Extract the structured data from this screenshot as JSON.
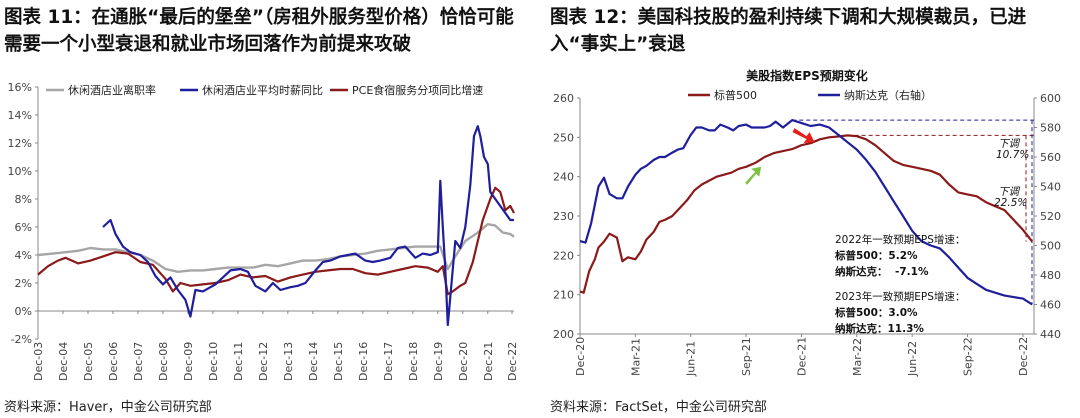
{
  "fig1": {
    "title": "图表 11：在通胀“最后的堡垒”（房租外服务型价格）恰恰可能需要一个小型衰退和就业市场回落作为前提来攻破",
    "source": "资料来源：Haver，中金公司研究部"
  },
  "fig2": {
    "title": "图表 12：美国科技股的盈利持续下调和大规模裁员，已进入“事实上”衰退",
    "source": "资料来源：FactSet，中金公司研究部"
  },
  "chart_data": [
    {
      "type": "line",
      "title": "",
      "categories": [
        "Dec-03",
        "Dec-04",
        "Dec-05",
        "Dec-06",
        "Dec-07",
        "Dec-08",
        "Dec-09",
        "Dec-10",
        "Dec-11",
        "Dec-12",
        "Dec-13",
        "Dec-14",
        "Dec-15",
        "Dec-16",
        "Dec-17",
        "Dec-18",
        "Dec-19",
        "Dec-20",
        "Dec-21",
        "Dec-22"
      ],
      "ylim": [
        -2,
        16
      ],
      "yticks": [
        "-2%",
        "0%",
        "2%",
        "4%",
        "6%",
        "8%",
        "10%",
        "12%",
        "14%",
        "16%"
      ],
      "legend_position": "top",
      "grid": false,
      "colors": {
        "quits": "#a6a6a6",
        "wages": "#1f1f9c",
        "pce": "#8b1a1a"
      },
      "series": [
        {
          "key": "quits",
          "name": "休闲酒店业离职率",
          "x": [
            2003.9,
            2004.5,
            2005.0,
            2005.5,
            2006.0,
            2006.5,
            2007.0,
            2007.5,
            2008.0,
            2008.5,
            2009.0,
            2009.5,
            2010.0,
            2010.5,
            2011.0,
            2011.5,
            2012.0,
            2012.5,
            2013.0,
            2013.5,
            2014.0,
            2014.5,
            2015.0,
            2015.5,
            2016.0,
            2016.5,
            2017.0,
            2017.5,
            2018.0,
            2018.5,
            2019.0,
            2019.5,
            2020.0,
            2020.3,
            2020.6,
            2021.0,
            2021.5,
            2021.9,
            2022.2,
            2022.5,
            2022.8,
            2022.95
          ],
          "values": [
            4.0,
            4.1,
            4.2,
            4.3,
            4.5,
            4.4,
            4.4,
            4.2,
            4.0,
            3.6,
            3.0,
            2.8,
            2.9,
            2.9,
            3.0,
            3.1,
            3.1,
            3.1,
            3.3,
            3.2,
            3.4,
            3.6,
            3.6,
            3.7,
            3.9,
            4.0,
            4.1,
            4.3,
            4.4,
            4.5,
            4.6,
            4.6,
            4.6,
            3.0,
            3.9,
            5.0,
            5.6,
            6.2,
            6.1,
            5.6,
            5.5,
            5.3
          ]
        },
        {
          "key": "wages",
          "name": "休闲酒店业平均时薪同比",
          "x": [
            2006.5,
            2006.8,
            2007.0,
            2007.3,
            2007.6,
            2008.0,
            2008.3,
            2008.6,
            2008.9,
            2009.2,
            2009.5,
            2009.8,
            2010.0,
            2010.2,
            2010.5,
            2010.8,
            2011.0,
            2011.3,
            2011.6,
            2012.0,
            2012.3,
            2012.6,
            2013.0,
            2013.3,
            2013.6,
            2014.0,
            2014.3,
            2014.6,
            2015.0,
            2015.3,
            2015.6,
            2016.0,
            2016.3,
            2016.6,
            2017.0,
            2017.3,
            2017.6,
            2018.0,
            2018.3,
            2018.6,
            2019.0,
            2019.3,
            2019.6,
            2019.9,
            2020.0,
            2020.1,
            2020.2,
            2020.3,
            2020.4,
            2020.5,
            2020.6,
            2020.8,
            2021.0,
            2021.2,
            2021.35,
            2021.5,
            2021.6,
            2021.75,
            2021.9,
            2022.0,
            2022.2,
            2022.4,
            2022.6,
            2022.8,
            2022.95
          ],
          "values": [
            6.0,
            6.5,
            5.5,
            4.6,
            4.2,
            4.0,
            3.5,
            2.5,
            1.9,
            2.4,
            1.5,
            0.8,
            -0.4,
            1.5,
            1.4,
            1.7,
            1.9,
            2.4,
            2.9,
            3.0,
            2.8,
            1.8,
            1.4,
            2.0,
            1.5,
            1.7,
            1.8,
            2.0,
            2.9,
            3.5,
            3.6,
            3.9,
            4.0,
            4.1,
            3.6,
            3.5,
            3.6,
            3.8,
            4.5,
            4.6,
            3.8,
            4.1,
            4.0,
            4.2,
            9.3,
            6.0,
            3.0,
            -1.0,
            1.0,
            3.0,
            5.0,
            4.5,
            6.0,
            9.0,
            12.5,
            13.2,
            12.5,
            11.0,
            10.5,
            8.5,
            8.0,
            7.5,
            7.0,
            6.5,
            6.5
          ]
        },
        {
          "key": "pce",
          "name": "PCE食宿服务分项同比增速",
          "x": [
            2003.9,
            2004.3,
            2004.7,
            2005.0,
            2005.5,
            2006.0,
            2006.5,
            2007.0,
            2007.5,
            2008.0,
            2008.5,
            2009.0,
            2009.3,
            2009.6,
            2010.0,
            2010.5,
            2011.0,
            2011.5,
            2012.0,
            2012.5,
            2013.0,
            2013.5,
            2014.0,
            2014.5,
            2015.0,
            2015.5,
            2016.0,
            2016.5,
            2017.0,
            2017.5,
            2018.0,
            2018.5,
            2019.0,
            2019.5,
            2019.9,
            2020.1,
            2020.3,
            2020.5,
            2020.8,
            2021.0,
            2021.3,
            2021.5,
            2021.7,
            2022.0,
            2022.2,
            2022.4,
            2022.6,
            2022.8,
            2022.95
          ],
          "values": [
            2.6,
            3.2,
            3.6,
            3.8,
            3.4,
            3.6,
            3.9,
            4.2,
            4.1,
            3.5,
            3.3,
            2.3,
            1.4,
            2.0,
            1.8,
            1.9,
            2.0,
            2.2,
            2.6,
            2.4,
            2.5,
            2.1,
            2.4,
            2.6,
            2.8,
            2.9,
            3.0,
            3.0,
            2.7,
            2.6,
            2.8,
            3.0,
            3.2,
            3.1,
            2.8,
            3.2,
            1.2,
            1.4,
            1.8,
            2.0,
            3.5,
            5.0,
            6.5,
            8.0,
            8.8,
            8.5,
            7.2,
            7.5,
            7.0
          ]
        }
      ]
    },
    {
      "type": "line",
      "title": "美股指数EPS预期变化",
      "categories": [
        "Dec-20",
        "Mar-21",
        "Jun-21",
        "Sep-21",
        "Dec-21",
        "Mar-22",
        "Jun-22",
        "Sep-22",
        "Dec-22"
      ],
      "ylim": [
        200,
        260
      ],
      "yticks": [
        "200",
        "210",
        "220",
        "230",
        "240",
        "250",
        "260"
      ],
      "ylim_right": [
        440,
        600
      ],
      "yticks_right": [
        "440",
        "460",
        "480",
        "500",
        "520",
        "540",
        "560",
        "580",
        "600"
      ],
      "legend_position": "top",
      "grid": false,
      "colors": {
        "sp500": "#8b1a1a",
        "nasdaq": "#1f1f9c",
        "red_arrow": "#e8201a",
        "green_arrow": "#7cc242"
      },
      "series": [
        {
          "key": "sp500",
          "name": "标普500",
          "axis": "left",
          "x": [
            0,
            0.2,
            0.5,
            0.8,
            1.0,
            1.3,
            1.6,
            2.0,
            2.3,
            2.6,
            3.0,
            3.3,
            3.6,
            4.0,
            4.3,
            4.6,
            5.0,
            5.4,
            5.8,
            6.2,
            6.6,
            7.0,
            7.4,
            7.8,
            8.2,
            8.6,
            9.0,
            9.5,
            10.0,
            10.5,
            11.0,
            11.5,
            12.0,
            12.5,
            13.0,
            13.5,
            14.0,
            14.5,
            15.0,
            15.5,
            16.0,
            16.5,
            17.0,
            17.5,
            18.0,
            18.5,
            19.0,
            19.5,
            20.0,
            20.5,
            21.0,
            21.5,
            22.0,
            22.5,
            23.0,
            23.5,
            24.0,
            24.5
          ],
          "values": [
            210.8,
            210.5,
            216.0,
            219.0,
            222.0,
            223.5,
            225.5,
            224.5,
            218.5,
            219.5,
            219.0,
            221.0,
            224.0,
            226.0,
            228.5,
            229.0,
            230.0,
            232.0,
            234.0,
            236.5,
            238.0,
            239.0,
            240.0,
            240.5,
            241.0,
            242.0,
            242.5,
            243.5,
            245.0,
            246.0,
            246.5,
            247.0,
            248.0,
            248.5,
            249.5,
            250.0,
            250.2,
            250.5,
            250.3,
            249.5,
            248.0,
            246.0,
            244.0,
            243.0,
            242.5,
            242.0,
            241.5,
            240.5,
            238.0,
            236.0,
            235.5,
            235.0,
            233.5,
            232.5,
            231.5,
            229.0,
            226.5,
            223.5
          ]
        },
        {
          "key": "nasdaq",
          "name": "纳斯达克（右轴）",
          "axis": "right",
          "x": [
            0,
            0.3,
            0.6,
            1.0,
            1.3,
            1.6,
            2.0,
            2.3,
            2.6,
            3.0,
            3.3,
            3.6,
            4.0,
            4.3,
            4.6,
            5.0,
            5.3,
            5.6,
            6.0,
            6.3,
            6.6,
            7.0,
            7.3,
            7.6,
            8.0,
            8.3,
            8.6,
            9.0,
            9.3,
            9.6,
            10.0,
            10.3,
            10.6,
            11.0,
            11.5,
            12.0,
            12.5,
            13.0,
            13.5,
            14.0,
            14.5,
            15.0,
            15.5,
            16.0,
            16.5,
            17.0,
            17.5,
            18.0,
            18.5,
            19.0,
            19.5,
            20.0,
            20.5,
            21.0,
            21.5,
            22.0,
            22.5,
            23.0,
            23.5,
            24.0,
            24.5
          ],
          "values": [
            503,
            502,
            515,
            540,
            546,
            535,
            532,
            532,
            540,
            548,
            552,
            554,
            558,
            560,
            560,
            563,
            565,
            566,
            575,
            580,
            580,
            578,
            578,
            582,
            580,
            578,
            581,
            582,
            580,
            580,
            580,
            581,
            584,
            580,
            585,
            583,
            581,
            582,
            580,
            575,
            570,
            565,
            558,
            550,
            540,
            530,
            520,
            510,
            503,
            500,
            498,
            492,
            485,
            478,
            474,
            470,
            468,
            466,
            465,
            464,
            460
          ]
        }
      ],
      "annotations": {
        "down_sp": "下调",
        "down_sp_val": "10.7%",
        "down_nq": "下调",
        "down_nq_val": "22.5%",
        "box_2022_title": "2022年一致预期EPS增速：",
        "box_2022_sp": "标普500：5.2%",
        "box_2022_nq_label": "纳斯达克：",
        "box_2022_nq_val": "-7.1%",
        "box_2023_title": "2023年一致预期EPS增速：",
        "box_2023_sp": "标普500：3.0%",
        "box_2023_nq": "纳斯达克：11.3%"
      }
    }
  ]
}
